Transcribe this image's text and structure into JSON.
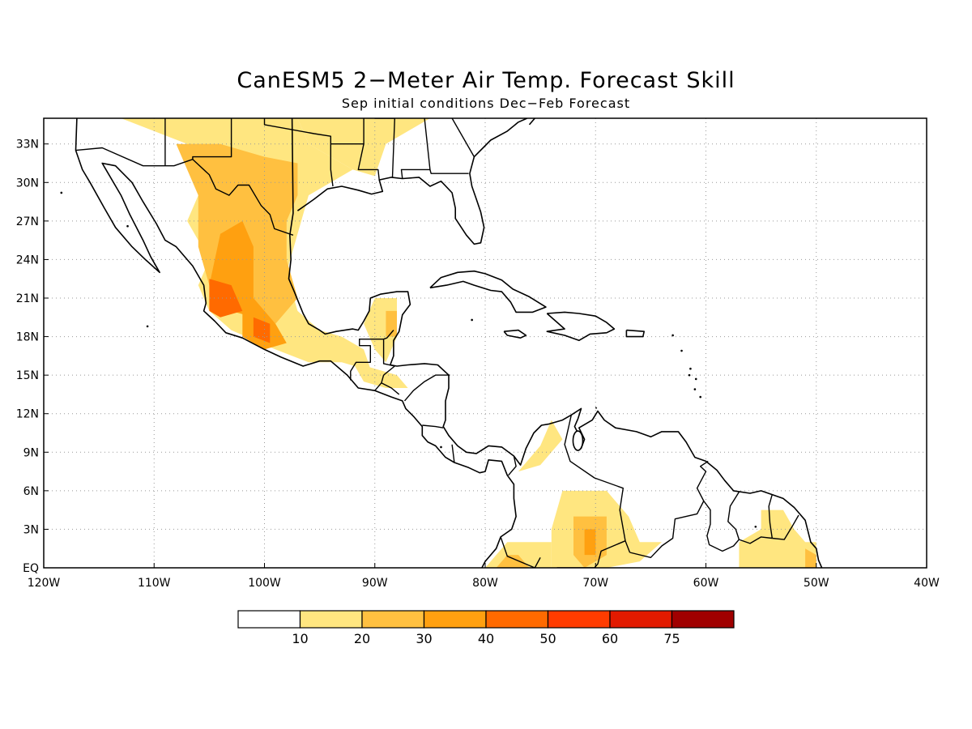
{
  "title": "CanESM5 2−Meter Air Temp. Forecast Skill",
  "subtitle": "Sep initial conditions  Dec−Feb Forecast",
  "map": {
    "lon_range": [
      -120,
      -40
    ],
    "lat_range": [
      0,
      35
    ],
    "lon_ticks": [
      {
        "value": -120,
        "label": "120W"
      },
      {
        "value": -110,
        "label": "110W"
      },
      {
        "value": -100,
        "label": "100W"
      },
      {
        "value": -90,
        "label": "90W"
      },
      {
        "value": -80,
        "label": "80W"
      },
      {
        "value": -70,
        "label": "70W"
      },
      {
        "value": -60,
        "label": "60W"
      },
      {
        "value": -50,
        "label": "50W"
      },
      {
        "value": -40,
        "label": "40W"
      }
    ],
    "lat_ticks": [
      {
        "value": 0,
        "label": "EQ"
      },
      {
        "value": 3,
        "label": "3N"
      },
      {
        "value": 6,
        "label": "6N"
      },
      {
        "value": 9,
        "label": "9N"
      },
      {
        "value": 12,
        "label": "12N"
      },
      {
        "value": 15,
        "label": "15N"
      },
      {
        "value": 18,
        "label": "18N"
      },
      {
        "value": 21,
        "label": "21N"
      },
      {
        "value": 24,
        "label": "24N"
      },
      {
        "value": 27,
        "label": "27N"
      },
      {
        "value": 30,
        "label": "30N"
      },
      {
        "value": 33,
        "label": "33N"
      }
    ],
    "grid": "dotted"
  },
  "legend": {
    "colors": [
      "#ffffff",
      "#ffe680",
      "#ffc040",
      "#ffa010",
      "#ff6a00",
      "#ff3c00",
      "#e21a00",
      "#a00000"
    ],
    "labels": [
      "10",
      "20",
      "30",
      "40",
      "50",
      "60",
      "75"
    ]
  },
  "skill_regions": [
    {
      "level": 1,
      "coords": [
        [
          -118,
          35
        ],
        [
          -97,
          35
        ],
        [
          -96,
          33
        ],
        [
          -92,
          31
        ],
        [
          -90,
          30.5
        ],
        [
          -89,
          33
        ],
        [
          -85,
          35
        ]
      ]
    },
    {
      "level": 1,
      "coords": [
        [
          -113,
          35
        ],
        [
          -110,
          34
        ],
        [
          -107,
          33
        ],
        [
          -104,
          31
        ],
        [
          -106,
          29
        ],
        [
          -107,
          27
        ],
        [
          -105,
          24
        ],
        [
          -106,
          22
        ],
        [
          -105,
          20
        ],
        [
          -103,
          18.5
        ],
        [
          -99,
          17
        ],
        [
          -96,
          16
        ],
        [
          -93,
          16
        ],
        [
          -91,
          15.5
        ],
        [
          -90,
          14.5
        ],
        [
          -91,
          17
        ],
        [
          -93,
          18
        ],
        [
          -95,
          18.5
        ],
        [
          -97,
          20
        ],
        [
          -98,
          23
        ],
        [
          -97,
          26
        ],
        [
          -96,
          29
        ],
        [
          -92,
          31
        ],
        [
          -96,
          33
        ],
        [
          -97,
          35
        ]
      ]
    },
    {
      "level": 1,
      "coords": [
        [
          -90,
          21
        ],
        [
          -88,
          21
        ],
        [
          -88,
          18
        ],
        [
          -89,
          16
        ],
        [
          -90,
          17
        ],
        [
          -91,
          19
        ]
      ]
    },
    {
      "level": 1,
      "coords": [
        [
          -92,
          16
        ],
        [
          -88,
          15
        ],
        [
          -87,
          14
        ],
        [
          -89,
          14
        ],
        [
          -91,
          14.5
        ]
      ]
    },
    {
      "level": 1,
      "coords": [
        [
          -74,
          11.5
        ],
        [
          -73,
          10
        ],
        [
          -75,
          8
        ],
        [
          -77,
          7.5
        ],
        [
          -75,
          9.5
        ]
      ]
    },
    {
      "level": 1,
      "coords": [
        [
          -73,
          6
        ],
        [
          -69,
          6
        ],
        [
          -67,
          4
        ],
        [
          -66,
          2
        ],
        [
          -64,
          2
        ],
        [
          -66,
          0.5
        ],
        [
          -69,
          0
        ],
        [
          -74,
          0
        ],
        [
          -74,
          3
        ]
      ]
    },
    {
      "level": 1,
      "coords": [
        [
          -78,
          2
        ],
        [
          -74,
          2
        ],
        [
          -74,
          0
        ],
        [
          -80,
          0
        ],
        [
          -79,
          1
        ]
      ]
    },
    {
      "level": 1,
      "coords": [
        [
          -55,
          4.5
        ],
        [
          -53,
          4.5
        ],
        [
          -52,
          3
        ],
        [
          -51,
          2
        ],
        [
          -50,
          2
        ],
        [
          -50,
          0
        ],
        [
          -57,
          0
        ],
        [
          -57,
          2
        ],
        [
          -55,
          3
        ]
      ]
    },
    {
      "level": 2,
      "coords": [
        [
          -108,
          33
        ],
        [
          -104,
          33
        ],
        [
          -100,
          32
        ],
        [
          -97,
          31.5
        ],
        [
          -97,
          29
        ],
        [
          -98,
          27
        ],
        [
          -98,
          24
        ],
        [
          -97,
          21
        ],
        [
          -99,
          19
        ],
        [
          -101,
          20
        ],
        [
          -103,
          20
        ],
        [
          -105,
          22
        ],
        [
          -106,
          25
        ],
        [
          -106,
          29
        ]
      ]
    },
    {
      "level": 2,
      "coords": [
        [
          -89,
          20
        ],
        [
          -88,
          20
        ],
        [
          -88,
          18
        ],
        [
          -89,
          18
        ]
      ]
    },
    {
      "level": 2,
      "coords": [
        [
          -72,
          4
        ],
        [
          -69,
          4
        ],
        [
          -69,
          1
        ],
        [
          -71,
          0
        ],
        [
          -72,
          1
        ]
      ]
    },
    {
      "level": 2,
      "coords": [
        [
          -77,
          1
        ],
        [
          -76,
          0
        ],
        [
          -79,
          0
        ],
        [
          -78,
          1
        ]
      ]
    },
    {
      "level": 2,
      "coords": [
        [
          -51,
          1.5
        ],
        [
          -50,
          1
        ],
        [
          -50,
          0
        ],
        [
          -51,
          0
        ]
      ]
    },
    {
      "level": 3,
      "coords": [
        [
          -104,
          26
        ],
        [
          -102,
          27
        ],
        [
          -101,
          25
        ],
        [
          -101,
          21
        ],
        [
          -99,
          19
        ],
        [
          -101,
          19.5
        ],
        [
          -103,
          20
        ],
        [
          -105,
          22
        ]
      ]
    },
    {
      "level": 3,
      "coords": [
        [
          -102,
          20
        ],
        [
          -99,
          19
        ],
        [
          -98,
          17.5
        ],
        [
          -100,
          17
        ],
        [
          -102,
          18
        ]
      ]
    },
    {
      "level": 3,
      "coords": [
        [
          -71,
          3
        ],
        [
          -70,
          3
        ],
        [
          -70,
          1
        ],
        [
          -71,
          1
        ]
      ]
    },
    {
      "level": 4,
      "coords": [
        [
          -105,
          22.5
        ],
        [
          -103,
          22
        ],
        [
          -102,
          20
        ],
        [
          -104,
          19.5
        ],
        [
          -105,
          20
        ]
      ]
    },
    {
      "level": 4,
      "coords": [
        [
          -101,
          19.5
        ],
        [
          -99.5,
          19
        ],
        [
          -99.5,
          17.5
        ],
        [
          -101,
          18
        ]
      ]
    }
  ]
}
